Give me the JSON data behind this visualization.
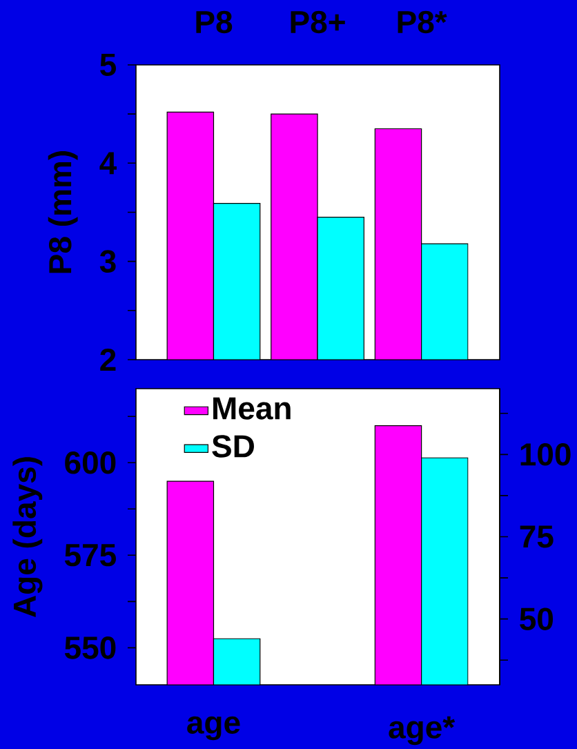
{
  "chart_data": [
    {
      "type": "bar",
      "categories": [
        "P8",
        "P8+",
        "P8*"
      ],
      "ylabel": "P8 (mm)",
      "ylim": [
        2,
        5
      ],
      "yticks": [
        2,
        {
          "value": 2.5,
          "label": null
        },
        3,
        {
          "value": 3.5,
          "label": null
        },
        4,
        {
          "value": 4.5,
          "label": null
        },
        5
      ],
      "series": [
        {
          "color": "#ff00ff",
          "values": [
            4.52,
            4.5,
            4.35
          ]
        },
        {
          "color": "#00ffff",
          "values": [
            3.59,
            3.45,
            3.18
          ]
        }
      ]
    },
    {
      "type": "bar",
      "categories": [
        "age",
        null,
        "age*"
      ],
      "ylabel": "Age (days)",
      "ylim": [
        540,
        620
      ],
      "yticks": [
        550,
        {
          "value": 562.5,
          "label": null
        },
        575,
        {
          "value": 587.5,
          "label": null
        },
        600,
        {
          "value": 612.5,
          "label": null
        }
      ],
      "y2lim": [
        30,
        120
      ],
      "y2ticks": [
        {
          "value": 37.5,
          "label": null
        },
        50,
        {
          "value": 62.5,
          "label": null
        },
        75,
        {
          "value": 87.5,
          "label": null
        },
        100,
        {
          "value": 112.5,
          "label": null
        }
      ],
      "legend": "top left",
      "series": [
        {
          "name": "Mean",
          "color": "#ff00ff",
          "values": [
            595,
            null,
            610
          ]
        },
        {
          "name": "SD",
          "color": "#00ffff",
          "axis": "y2",
          "values": [
            44,
            null,
            99
          ]
        }
      ]
    }
  ]
}
